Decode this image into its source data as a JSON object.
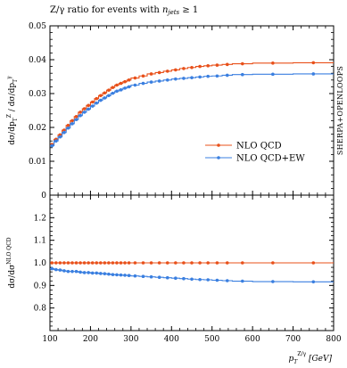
{
  "chart_data": [
    {
      "type": "line",
      "panel": "main",
      "title_prefix": "Z/γ ratio for events with ",
      "title_var": "n",
      "title_sub": "jets",
      "title_suffix": " ≥ 1",
      "ylabel": "dσ/dpZT / dσ/dpγT",
      "side_label": "SHERPA+OPENLOOPS",
      "xlim": [
        100,
        800
      ],
      "ylim": [
        0,
        0.05
      ],
      "yticks": [
        0,
        0.01,
        0.02,
        0.03,
        0.04,
        0.05
      ],
      "ytick_labels": [
        "0",
        "0.01",
        "0.02",
        "0.03",
        "0.04",
        "0.05"
      ],
      "bin_edges": [
        100,
        110,
        120,
        130,
        140,
        150,
        160,
        170,
        180,
        190,
        200,
        210,
        220,
        230,
        240,
        250,
        260,
        270,
        280,
        290,
        300,
        320,
        340,
        360,
        380,
        400,
        420,
        440,
        460,
        480,
        500,
        525,
        550,
        600,
        700,
        800
      ],
      "series": [
        {
          "name": "NLO QCD",
          "color": "#e8501a",
          "values": [
            0.015,
            0.0165,
            0.0178,
            0.0192,
            0.0206,
            0.022,
            0.0232,
            0.0245,
            0.0255,
            0.0265,
            0.0275,
            0.0285,
            0.0294,
            0.0302,
            0.031,
            0.0318,
            0.0325,
            0.033,
            0.0335,
            0.034,
            0.0346,
            0.0352,
            0.0358,
            0.0362,
            0.0366,
            0.037,
            0.0374,
            0.0377,
            0.038,
            0.0382,
            0.0384,
            0.0386,
            0.0388,
            0.039,
            0.0391
          ]
        },
        {
          "name": "NLO QCD+EW",
          "color": "#3a7fe0",
          "values": [
            0.0146,
            0.016,
            0.0172,
            0.0185,
            0.0198,
            0.0211,
            0.0223,
            0.0235,
            0.0245,
            0.0254,
            0.0263,
            0.0272,
            0.028,
            0.0287,
            0.0294,
            0.0301,
            0.0307,
            0.0311,
            0.0316,
            0.032,
            0.0325,
            0.033,
            0.0334,
            0.0337,
            0.034,
            0.0343,
            0.0345,
            0.0347,
            0.0349,
            0.0351,
            0.0352,
            0.0354,
            0.0356,
            0.0357,
            0.0358
          ]
        }
      ],
      "legend_position": "right"
    },
    {
      "type": "line",
      "panel": "ratio",
      "ylabel": "dσ/dσNLO QCD",
      "xlabel_var": "p",
      "xlabel_sub": "T",
      "xlabel_sup": "Z/γ",
      "xlabel_unit": " [GeV]",
      "xlim": [
        100,
        800
      ],
      "ylim": [
        0.7,
        1.3
      ],
      "yticks": [
        0.8,
        0.9,
        1.0,
        1.1,
        1.2
      ],
      "ytick_labels": [
        "0.8",
        "0.9",
        "1.0",
        "1.1",
        "1.2"
      ],
      "xticks": [
        100,
        200,
        300,
        400,
        500,
        600,
        700,
        800
      ],
      "xtick_labels": [
        "100",
        "200",
        "300",
        "400",
        "500",
        "600",
        "700",
        "800"
      ],
      "series": [
        {
          "name": "NLO QCD",
          "color": "#e8501a",
          "values": [
            1.0,
            1.0,
            1.0,
            1.0,
            1.0,
            1.0,
            1.0,
            1.0,
            1.0,
            1.0,
            1.0,
            1.0,
            1.0,
            1.0,
            1.0,
            1.0,
            1.0,
            1.0,
            1.0,
            1.0,
            1.0,
            1.0,
            1.0,
            1.0,
            1.0,
            1.0,
            1.0,
            1.0,
            1.0,
            1.0,
            1.0,
            1.0,
            1.0,
            1.0,
            1.0
          ]
        },
        {
          "name": "NLO QCD+EW",
          "color": "#3a7fe0",
          "values": [
            0.974,
            0.97,
            0.968,
            0.965,
            0.962,
            0.962,
            0.962,
            0.959,
            0.957,
            0.957,
            0.955,
            0.955,
            0.953,
            0.952,
            0.95,
            0.948,
            0.947,
            0.946,
            0.945,
            0.944,
            0.942,
            0.94,
            0.938,
            0.936,
            0.934,
            0.932,
            0.93,
            0.928,
            0.926,
            0.925,
            0.923,
            0.921,
            0.919,
            0.917,
            0.916
          ]
        }
      ]
    }
  ]
}
